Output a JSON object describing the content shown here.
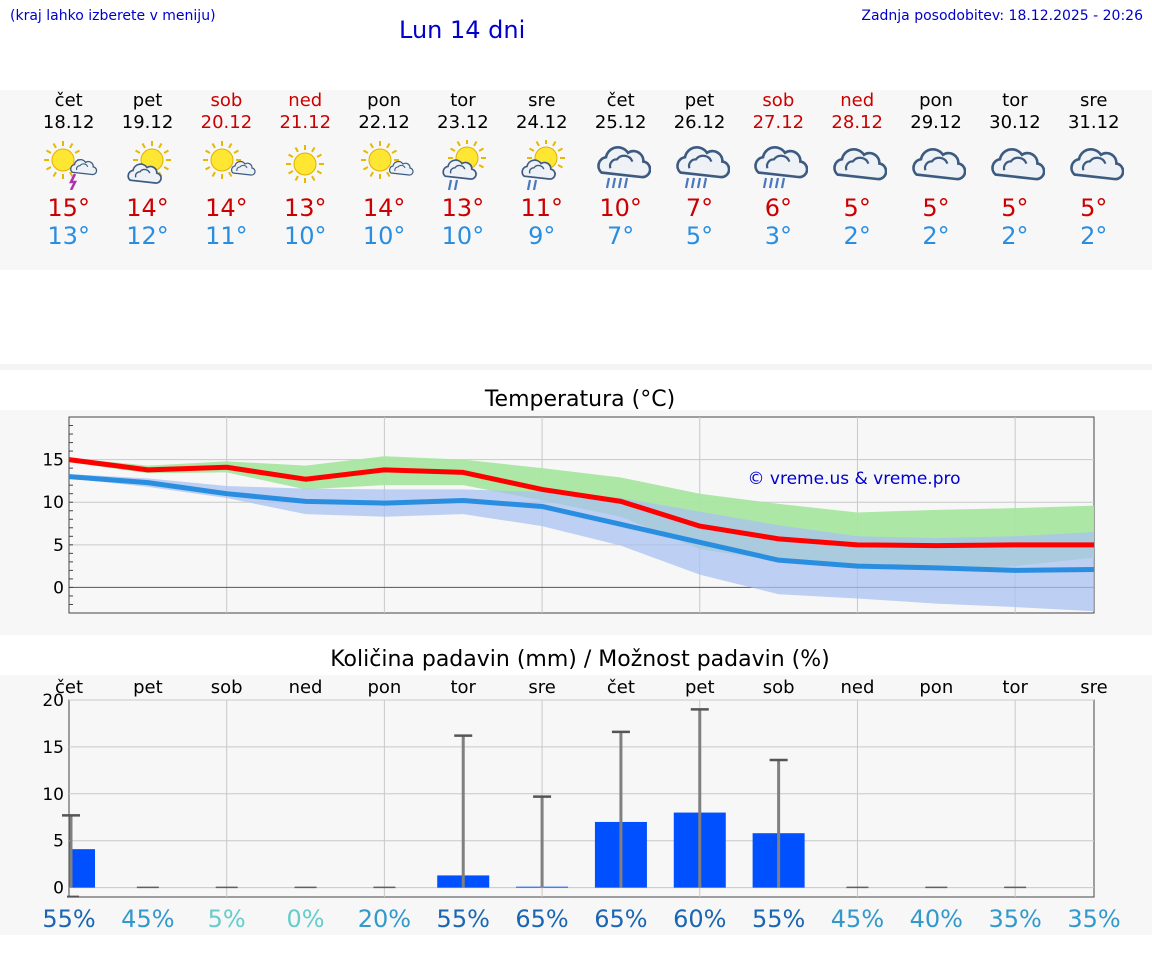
{
  "header": {
    "location_hint": "(kraj lahko izberete v meniju)",
    "title": "Lun 14 dni",
    "updated": "Zadnja posodobitev: 18.12.2025 - 20:26"
  },
  "days": [
    {
      "name": "čet",
      "date": "18.12",
      "weekend": false,
      "icon": "sun-cloud-thunder-icon",
      "tmax": "15°",
      "tmin": "13°"
    },
    {
      "name": "pet",
      "date": "19.12",
      "weekend": false,
      "icon": "sun-cloud-icon",
      "tmax": "14°",
      "tmin": "12°"
    },
    {
      "name": "sob",
      "date": "20.12",
      "weekend": true,
      "icon": "sun-small-cloud-icon",
      "tmax": "14°",
      "tmin": "11°"
    },
    {
      "name": "ned",
      "date": "21.12",
      "weekend": true,
      "icon": "sun-icon",
      "tmax": "13°",
      "tmin": "10°"
    },
    {
      "name": "pon",
      "date": "22.12",
      "weekend": false,
      "icon": "sun-small-cloud-icon",
      "tmax": "14°",
      "tmin": "10°"
    },
    {
      "name": "tor",
      "date": "23.12",
      "weekend": false,
      "icon": "sun-cloud-rain-icon",
      "tmax": "13°",
      "tmin": "10°"
    },
    {
      "name": "sre",
      "date": "24.12",
      "weekend": false,
      "icon": "sun-cloud-rain-icon",
      "tmax": "11°",
      "tmin": "9°"
    },
    {
      "name": "čet",
      "date": "25.12",
      "weekend": false,
      "icon": "cloud-heavy-rain-icon",
      "tmax": "10°",
      "tmin": "7°"
    },
    {
      "name": "pet",
      "date": "26.12",
      "weekend": false,
      "icon": "cloud-heavy-rain-icon",
      "tmax": "7°",
      "tmin": "5°"
    },
    {
      "name": "sob",
      "date": "27.12",
      "weekend": true,
      "icon": "cloud-heavy-rain-icon",
      "tmax": "6°",
      "tmin": "3°"
    },
    {
      "name": "ned",
      "date": "28.12",
      "weekend": true,
      "icon": "cloud-icon",
      "tmax": "5°",
      "tmin": "2°"
    },
    {
      "name": "pon",
      "date": "29.12",
      "weekend": false,
      "icon": "cloud-icon",
      "tmax": "5°",
      "tmin": "2°"
    },
    {
      "name": "tor",
      "date": "30.12",
      "weekend": false,
      "icon": "cloud-icon",
      "tmax": "5°",
      "tmin": "2°"
    },
    {
      "name": "sre",
      "date": "31.12",
      "weekend": false,
      "icon": "cloud-icon",
      "tmax": "5°",
      "tmin": "2°"
    }
  ],
  "colors": {
    "max_line": "#ff0000",
    "min_line": "#2a8ee0",
    "max_band": "#a8e6a1",
    "min_band": "#a9c1f0",
    "overlap_band": "#7cc9a5",
    "bar": "#0050ff",
    "whisker": "#808080",
    "watermark": "#0000cc"
  },
  "chart_data": [
    {
      "type": "line",
      "title": "Temperatura (°C)",
      "xlabel": "",
      "ylabel": "",
      "ylim": [
        -3,
        20
      ],
      "yticks": [
        0,
        5,
        10,
        15
      ],
      "grid": true,
      "watermark": "© vreme.us & vreme.pro",
      "x": [
        0,
        1,
        2,
        3,
        4,
        5,
        6,
        7,
        8,
        9,
        10,
        11,
        12,
        13
      ],
      "series": [
        {
          "name": "max",
          "values": [
            15,
            13.8,
            14.1,
            12.7,
            13.8,
            13.5,
            11.5,
            10.1,
            7.2,
            5.7,
            5.0,
            4.9,
            5.0,
            5.0
          ]
        },
        {
          "name": "min",
          "values": [
            13,
            12.3,
            11,
            10.1,
            9.9,
            10.2,
            9.5,
            7.4,
            5.3,
            3.2,
            2.5,
            2.3,
            2.0,
            2.1
          ]
        },
        {
          "name": "max_band_high",
          "values": [
            15.2,
            14.3,
            14.8,
            14.3,
            15.4,
            15.0,
            14.0,
            12.9,
            11.0,
            9.8,
            8.8,
            9.1,
            9.3,
            9.6
          ]
        },
        {
          "name": "max_band_low",
          "values": [
            14.7,
            13.4,
            13.5,
            11.5,
            12.0,
            12.0,
            10.2,
            8.3,
            4.5,
            3.1,
            2.5,
            2.0,
            2.5,
            3.5
          ]
        },
        {
          "name": "min_band_high",
          "values": [
            13.3,
            12.8,
            11.9,
            11.6,
            11.5,
            11.5,
            11.2,
            10.5,
            8.9,
            7.3,
            6.0,
            5.8,
            6.0,
            6.5
          ]
        },
        {
          "name": "min_band_low",
          "values": [
            12.8,
            11.8,
            10.5,
            8.6,
            8.3,
            8.6,
            7.2,
            4.9,
            1.5,
            -0.8,
            -1.3,
            -1.9,
            -2.3,
            -2.8
          ]
        }
      ]
    },
    {
      "type": "bar",
      "title": "Količina padavin (mm) / Možnost padavin (%)",
      "xlabel": "",
      "ylabel": "",
      "ylim": [
        -1,
        20
      ],
      "yticks": [
        0,
        5,
        10,
        15,
        20
      ],
      "grid": true,
      "categories": [
        "čet",
        "pet",
        "sob",
        "ned",
        "pon",
        "tor",
        "sre",
        "čet",
        "pet",
        "sob",
        "ned",
        "pon",
        "tor",
        "sre"
      ],
      "values": [
        4.1,
        0,
        0,
        0,
        0,
        1.3,
        0.1,
        7.0,
        8.0,
        5.8,
        0,
        0,
        0,
        0
      ],
      "error_high": [
        7.7,
        0,
        0,
        0,
        0,
        16.2,
        9.7,
        16.6,
        19.0,
        13.6,
        0,
        0,
        0,
        0
      ],
      "probability": [
        "55%",
        "45%",
        "5%",
        "0%",
        "20%",
        "55%",
        "65%",
        "65%",
        "60%",
        "55%",
        "45%",
        "40%",
        "35%",
        "35%"
      ],
      "probability_colors": [
        "#1a66b3",
        "#3399cc",
        "#66cccc",
        "#66cccc",
        "#3399cc",
        "#1a66b3",
        "#1a66b3",
        "#1a66b3",
        "#1a66b3",
        "#1a66b3",
        "#3399cc",
        "#3399cc",
        "#3399cc",
        "#3399cc"
      ]
    }
  ]
}
